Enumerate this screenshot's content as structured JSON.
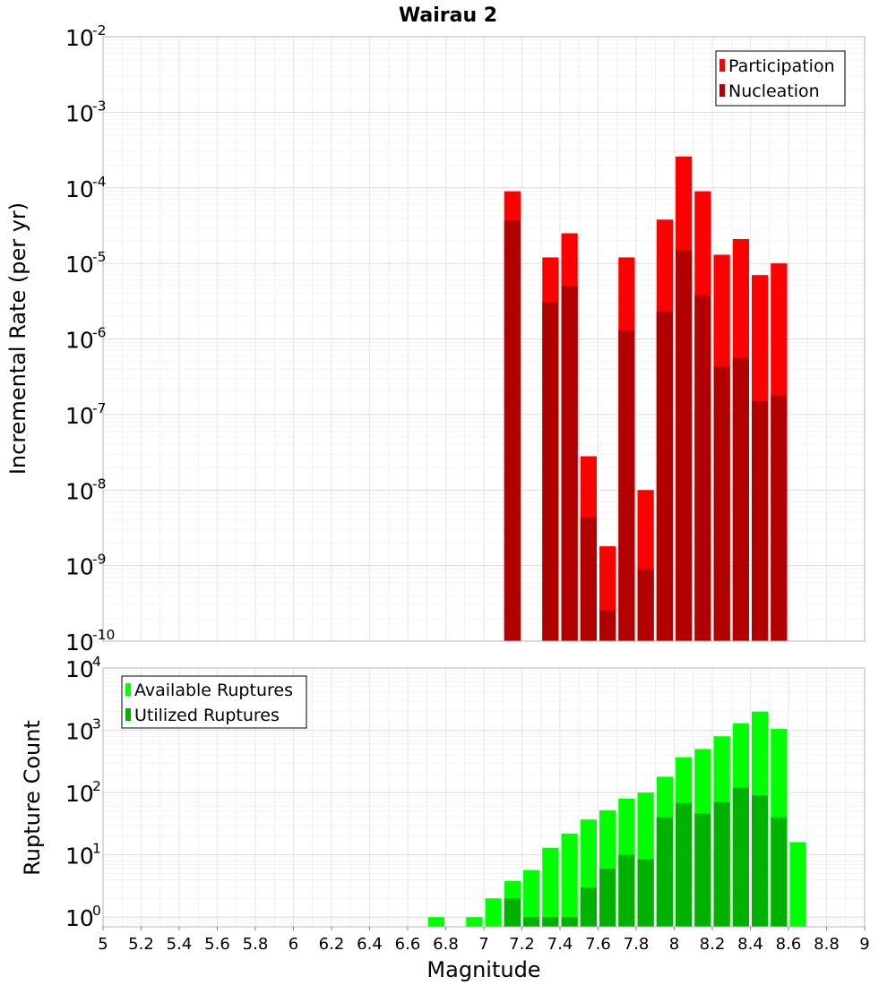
{
  "title": "Wairau 2",
  "xlabel": "Magnitude",
  "x_ticks": [
    "5",
    "5.2",
    "5.4",
    "5.6",
    "5.8",
    "6",
    "6.2",
    "6.4",
    "6.6",
    "6.8",
    "7",
    "7.2",
    "7.4",
    "7.6",
    "7.8",
    "8",
    "8.2",
    "8.4",
    "8.6",
    "8.8",
    "9"
  ],
  "colors": {
    "participation": "#ff0000",
    "nucleation": "#b20000",
    "available": "#00ff00",
    "utilized": "#00b200",
    "grid": "#e6e6e6",
    "frame": "#b4b4b4"
  },
  "chart_data": [
    {
      "type": "bar",
      "title": "Wairau 2",
      "xlabel": "Magnitude",
      "ylabel": "Incremental Rate (per yr)",
      "xlim": [
        5,
        9
      ],
      "ylim": [
        1e-10,
        0.01
      ],
      "yscale": "log",
      "y_tick_exponents": [
        "-2",
        "-3",
        "-4",
        "-5",
        "-6",
        "-7",
        "-8",
        "-9",
        "-10"
      ],
      "grid": true,
      "legend_position": "top-right",
      "series": [
        {
          "name": "Participation",
          "points": [
            {
              "x": 7.15,
              "y": 9e-05
            },
            {
              "x": 7.35,
              "y": 1.2e-05
            },
            {
              "x": 7.45,
              "y": 2.5e-05
            },
            {
              "x": 7.55,
              "y": 2.8e-08
            },
            {
              "x": 7.65,
              "y": 1.8e-09
            },
            {
              "x": 7.75,
              "y": 1.2e-05
            },
            {
              "x": 7.85,
              "y": 1e-08
            },
            {
              "x": 7.95,
              "y": 3.8e-05
            },
            {
              "x": 8.05,
              "y": 0.00026
            },
            {
              "x": 8.15,
              "y": 9e-05
            },
            {
              "x": 8.25,
              "y": 1.3e-05
            },
            {
              "x": 8.35,
              "y": 2.1e-05
            },
            {
              "x": 8.45,
              "y": 7e-06
            },
            {
              "x": 8.55,
              "y": 1e-05
            }
          ]
        },
        {
          "name": "Nucleation",
          "points": [
            {
              "x": 7.15,
              "y": 3.7e-05
            },
            {
              "x": 7.35,
              "y": 3.1e-06
            },
            {
              "x": 7.45,
              "y": 5e-06
            },
            {
              "x": 7.55,
              "y": 4.4e-09
            },
            {
              "x": 7.65,
              "y": 2.6e-10
            },
            {
              "x": 7.75,
              "y": 1.3e-06
            },
            {
              "x": 7.85,
              "y": 9e-10
            },
            {
              "x": 7.95,
              "y": 2.3e-06
            },
            {
              "x": 8.05,
              "y": 1.5e-05
            },
            {
              "x": 8.15,
              "y": 3.8e-06
            },
            {
              "x": 8.25,
              "y": 4.3e-07
            },
            {
              "x": 8.35,
              "y": 5.6e-07
            },
            {
              "x": 8.45,
              "y": 1.5e-07
            },
            {
              "x": 8.55,
              "y": 1.8e-07
            }
          ]
        }
      ]
    },
    {
      "type": "bar",
      "xlabel": "Magnitude",
      "ylabel": "Rupture Count",
      "xlim": [
        5,
        9
      ],
      "ylim": [
        0.7,
        10000
      ],
      "yscale": "log",
      "y_tick_exponents": [
        "4",
        "3",
        "2",
        "1",
        "0"
      ],
      "grid": true,
      "legend_position": "top-left",
      "series": [
        {
          "name": "Available Ruptures",
          "points": [
            {
              "x": 6.75,
              "y": 1
            },
            {
              "x": 6.95,
              "y": 1
            },
            {
              "x": 7.05,
              "y": 2
            },
            {
              "x": 7.15,
              "y": 3.8
            },
            {
              "x": 7.25,
              "y": 5.7
            },
            {
              "x": 7.35,
              "y": 13
            },
            {
              "x": 7.45,
              "y": 22
            },
            {
              "x": 7.55,
              "y": 37
            },
            {
              "x": 7.65,
              "y": 52
            },
            {
              "x": 7.75,
              "y": 80
            },
            {
              "x": 7.85,
              "y": 100
            },
            {
              "x": 7.95,
              "y": 180
            },
            {
              "x": 8.05,
              "y": 370
            },
            {
              "x": 8.15,
              "y": 500
            },
            {
              "x": 8.25,
              "y": 800
            },
            {
              "x": 8.35,
              "y": 1300
            },
            {
              "x": 8.45,
              "y": 2000
            },
            {
              "x": 8.55,
              "y": 1050
            },
            {
              "x": 8.65,
              "y": 16
            }
          ]
        },
        {
          "name": "Utilized Ruptures",
          "points": [
            {
              "x": 7.15,
              "y": 2
            },
            {
              "x": 7.25,
              "y": 1
            },
            {
              "x": 7.35,
              "y": 1
            },
            {
              "x": 7.45,
              "y": 1
            },
            {
              "x": 7.55,
              "y": 3
            },
            {
              "x": 7.65,
              "y": 6
            },
            {
              "x": 7.75,
              "y": 10
            },
            {
              "x": 7.85,
              "y": 8.5
            },
            {
              "x": 7.95,
              "y": 40
            },
            {
              "x": 8.05,
              "y": 68
            },
            {
              "x": 8.15,
              "y": 46
            },
            {
              "x": 8.25,
              "y": 70
            },
            {
              "x": 8.35,
              "y": 120
            },
            {
              "x": 8.45,
              "y": 90
            },
            {
              "x": 8.55,
              "y": 40
            }
          ]
        }
      ]
    }
  ]
}
